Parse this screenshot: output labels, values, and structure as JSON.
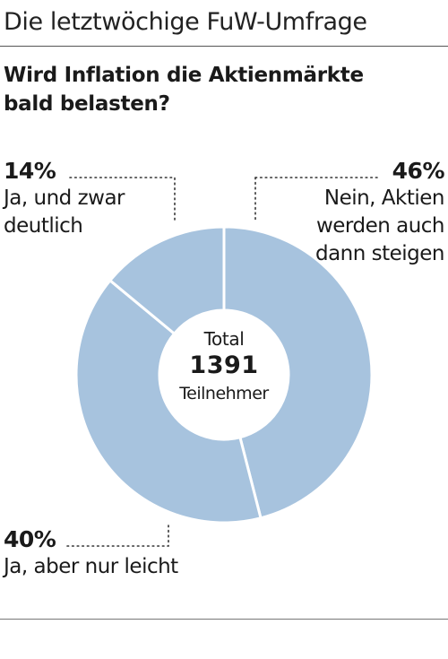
{
  "header": {
    "title": "Die letztwöchige FuW-Umfrage"
  },
  "question": "Wird Inflation die Aktienmärkte bald belasten?",
  "center": {
    "label_top": "Total",
    "total": "1391",
    "label_bottom": "Teilnehmer"
  },
  "colors": {
    "slice": "#a7c3de",
    "separator": "#ffffff",
    "leader": "#333333"
  },
  "chart_data": {
    "type": "pie",
    "donut": true,
    "title": "Wird Inflation die Aktienmärkte bald belasten?",
    "slices": [
      {
        "label_pct": "46%",
        "label_line1": "Nein, Aktien",
        "label_line2": "werden auch",
        "label_line3": "dann steigen",
        "value": 46
      },
      {
        "label_pct": "40%",
        "label_line1": "Ja, aber nur leicht",
        "value": 40
      },
      {
        "label_pct": "14%",
        "label_line1": "Ja, und zwar",
        "label_line2": "deutlich",
        "value": 14
      }
    ],
    "total_participants": 1391
  }
}
